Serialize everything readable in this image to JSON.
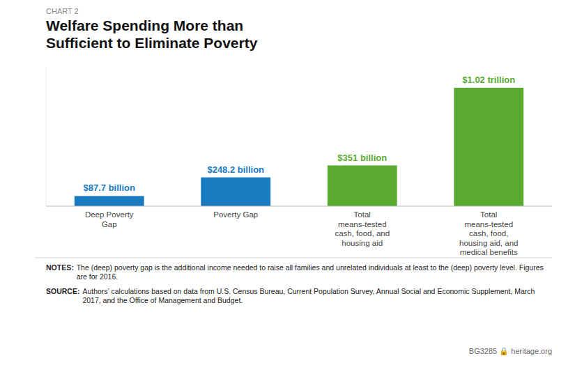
{
  "chart_data": {
    "type": "bar",
    "title": "Welfare Spending More than\nSufficient to Eliminate Poverty",
    "annotations": [
      "CHART 2",
      "NOTES:",
      "The (deep) poverty gap is the additional income needed to raise all families and unrelated individuals at least to the (deep) poverty level. Figures are for 2016.",
      "SOURCE:",
      "Authors’ calculations based on data from U.S. Census Bureau, Current Population Survey, Annual Social and Economic Supplement, March 2017, and the Office of Management and Budget.",
      "BG3285  🔒 heritage.org"
    ],
    "categories": [
      "Deep Poverty\nGap",
      "Poverty Gap",
      "Total\nmeans-tested\ncash, food, and\nhousing aid",
      "Total\nmeans-tested\ncash, food,\nhousing aid, and\nmedical benefits"
    ],
    "values": [
      87.7,
      248.2,
      351,
      1020
    ],
    "value_labels": [
      "$87.7 billion",
      "$248.2 billion",
      "$351 billion",
      "$1.02 trillion"
    ],
    "colors": [
      "#1a7abf",
      "#1a7abf",
      "#5aaa32",
      "#5aaa32"
    ],
    "ylim": [
      0,
      1200
    ],
    "data_labels": true,
    "tick_labels": "x",
    "grid": false
  }
}
